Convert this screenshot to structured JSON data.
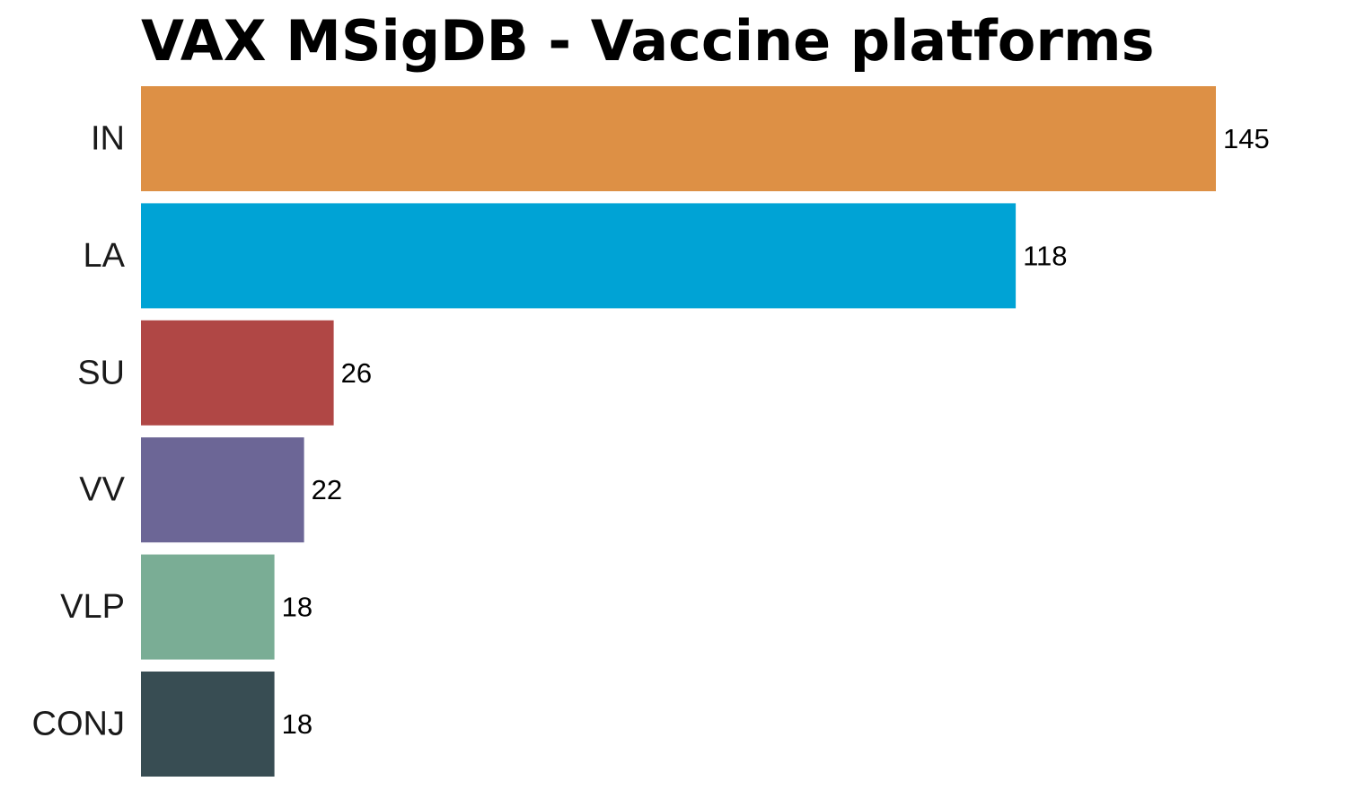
{
  "chart_data": {
    "type": "bar",
    "orientation": "horizontal",
    "title": "VAX MSigDB - Vaccine platforms",
    "xlabel": "",
    "ylabel": "",
    "grid": false,
    "legend": "none",
    "xlim": [
      0,
      145
    ],
    "categories": [
      "IN",
      "LA",
      "SU",
      "VV",
      "VLP",
      "CONJ"
    ],
    "values": [
      145,
      118,
      26,
      22,
      18,
      18
    ],
    "colors": [
      "#DD9045",
      "#00A3D5",
      "#B04745",
      "#6C6696",
      "#7AAD95",
      "#384D53"
    ]
  }
}
